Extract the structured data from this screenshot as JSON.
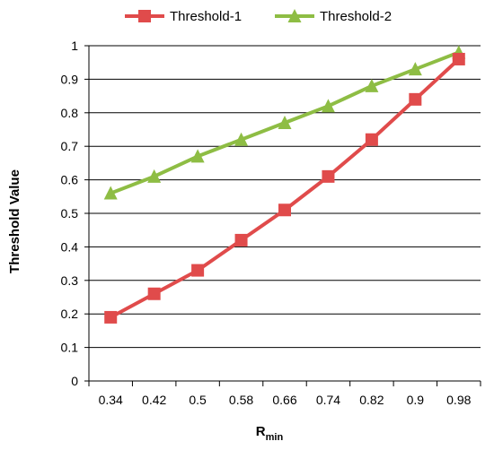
{
  "chart_data": {
    "type": "line",
    "title": "",
    "xlabel": "R",
    "xlabel_sub": "min",
    "ylabel": "Threshold Value",
    "categories": [
      "0.34",
      "0.42",
      "0.5",
      "0.58",
      "0.66",
      "0.74",
      "0.82",
      "0.9",
      "0.98"
    ],
    "ylim": [
      0,
      1
    ],
    "yticks": [
      "0",
      "0.1",
      "0.2",
      "0.3",
      "0.4",
      "0.5",
      "0.6",
      "0.7",
      "0.8",
      "0.9",
      "1"
    ],
    "grid": true,
    "legend_position": "top",
    "series": [
      {
        "name": "Threshold-1",
        "color": "#e04b4b",
        "marker": "square",
        "values": [
          0.19,
          0.26,
          0.33,
          0.42,
          0.51,
          0.61,
          0.72,
          0.84,
          0.96
        ]
      },
      {
        "name": "Threshold-2",
        "color": "#8ebd44",
        "marker": "triangle",
        "values": [
          0.56,
          0.61,
          0.67,
          0.72,
          0.77,
          0.82,
          0.88,
          0.93,
          0.98
        ]
      }
    ]
  }
}
